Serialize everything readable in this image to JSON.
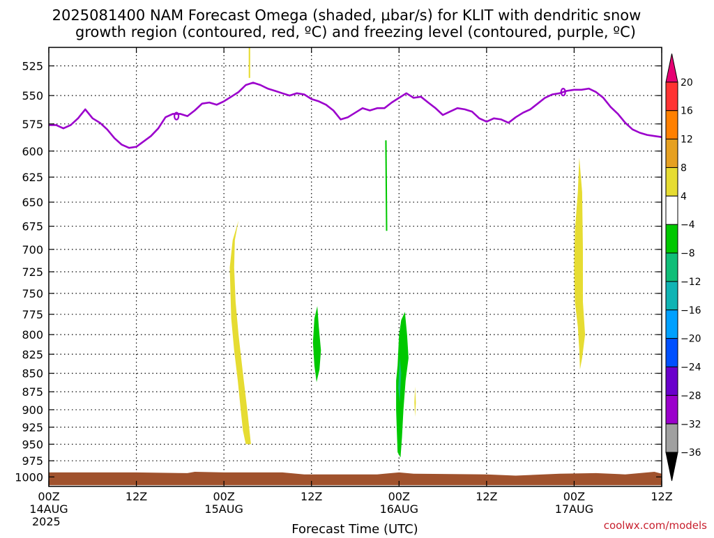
{
  "header": {
    "title_line1": "2025081400 NAM Forecast Omega (shaded, μbar/s) for KLIT with dendritic snow",
    "title_line2": "growth region (contoured, red, ºC) and freezing level (contoured, purple, ºC)"
  },
  "footer": {
    "credit": "coolwx.com/models"
  },
  "chart_data": {
    "type": "heatmap",
    "title": "2025081400 NAM Forecast Omega (shaded, μbar/s) for KLIT with dendritic snow growth region (contoured, red, ºC) and freezing level (contoured, purple, ºC)",
    "xlabel": "Forecast Time (UTC)",
    "ylabel": "",
    "x_unit": "hours",
    "xlim": [
      0,
      84
    ],
    "x_ticks": [
      {
        "h": 0,
        "line1": "00Z",
        "line2": "14AUG",
        "line3": "2025"
      },
      {
        "h": 12,
        "line1": "12Z",
        "line2": "",
        "line3": ""
      },
      {
        "h": 24,
        "line1": "00Z",
        "line2": "15AUG",
        "line3": ""
      },
      {
        "h": 36,
        "line1": "12Z",
        "line2": "",
        "line3": ""
      },
      {
        "h": 48,
        "line1": "00Z",
        "line2": "16AUG",
        "line3": ""
      },
      {
        "h": 60,
        "line1": "12Z",
        "line2": "",
        "line3": ""
      },
      {
        "h": 72,
        "line1": "00Z",
        "line2": "17AUG",
        "line3": ""
      },
      {
        "h": 84,
        "line1": "12Z",
        "line2": "",
        "line3": ""
      }
    ],
    "ylim": [
      1015,
      510
    ],
    "y_scale": "log-pressure",
    "y_ticks": [
      525,
      550,
      575,
      600,
      625,
      650,
      675,
      700,
      725,
      750,
      775,
      800,
      825,
      850,
      875,
      900,
      925,
      950,
      975,
      1000
    ],
    "grid": true,
    "freezing_level": {
      "color": "#9b00cc",
      "points": [
        [
          0,
          576
        ],
        [
          1,
          576
        ],
        [
          2,
          579
        ],
        [
          3,
          576
        ],
        [
          4,
          570
        ],
        [
          5,
          562
        ],
        [
          6,
          570
        ],
        [
          7,
          574
        ],
        [
          8,
          580
        ],
        [
          9,
          588
        ],
        [
          10,
          594
        ],
        [
          11,
          597
        ],
        [
          12,
          596
        ],
        [
          13,
          591
        ],
        [
          14,
          586
        ],
        [
          15,
          579
        ],
        [
          16,
          569
        ],
        [
          17,
          566
        ],
        [
          18,
          566
        ],
        [
          19,
          568
        ],
        [
          20,
          563
        ],
        [
          21,
          557
        ],
        [
          22,
          556
        ],
        [
          23,
          558
        ],
        [
          24,
          555
        ],
        [
          25,
          551
        ],
        [
          26,
          547
        ],
        [
          27,
          541
        ],
        [
          28,
          539
        ],
        [
          29,
          541
        ],
        [
          30,
          544
        ],
        [
          31,
          546
        ],
        [
          32,
          548
        ],
        [
          33,
          550
        ],
        [
          34,
          548
        ],
        [
          35,
          549
        ],
        [
          36,
          553
        ],
        [
          37,
          555
        ],
        [
          38,
          558
        ],
        [
          39,
          563
        ],
        [
          40,
          571
        ],
        [
          41,
          569
        ],
        [
          42,
          565
        ],
        [
          43,
          561
        ],
        [
          44,
          563
        ],
        [
          45,
          561
        ],
        [
          46,
          561
        ],
        [
          47,
          556
        ],
        [
          48,
          552
        ],
        [
          49,
          548
        ],
        [
          50,
          552
        ],
        [
          51,
          551
        ],
        [
          52,
          556
        ],
        [
          53,
          561
        ],
        [
          54,
          567
        ],
        [
          55,
          564
        ],
        [
          56,
          561
        ],
        [
          57,
          562
        ],
        [
          58,
          564
        ],
        [
          59,
          570
        ],
        [
          60,
          573
        ],
        [
          61,
          570
        ],
        [
          62,
          571
        ],
        [
          63,
          574
        ],
        [
          64,
          569
        ],
        [
          65,
          565
        ],
        [
          66,
          562
        ],
        [
          67,
          557
        ],
        [
          68,
          552
        ],
        [
          69,
          549
        ],
        [
          70,
          548
        ],
        [
          71,
          546
        ],
        [
          72,
          545
        ],
        [
          73,
          545
        ],
        [
          74,
          544
        ],
        [
          75,
          547
        ],
        [
          76,
          552
        ],
        [
          77,
          560
        ],
        [
          78,
          566
        ],
        [
          79,
          574
        ],
        [
          80,
          580
        ],
        [
          81,
          583
        ],
        [
          82,
          585
        ],
        [
          83,
          586
        ],
        [
          84,
          587
        ]
      ]
    },
    "terrain": {
      "color": "#a0522d",
      "top_points": [
        [
          0,
          993
        ],
        [
          12,
          993
        ],
        [
          19,
          994
        ],
        [
          20,
          992
        ],
        [
          24,
          993
        ],
        [
          32,
          993
        ],
        [
          35,
          996
        ],
        [
          45,
          996
        ],
        [
          46,
          995
        ],
        [
          48,
          993
        ],
        [
          50,
          995
        ],
        [
          60,
          996
        ],
        [
          62,
          997
        ],
        [
          64,
          998
        ],
        [
          70,
          995
        ],
        [
          75,
          994
        ],
        [
          79,
          996
        ],
        [
          83,
          992
        ],
        [
          84,
          995
        ]
      ],
      "bottom_hpa": 1013
    },
    "omega_colorbar": {
      "levels": [
        20,
        16,
        12,
        8,
        4,
        -4,
        -8,
        -12,
        -16,
        -20,
        -24,
        -28,
        -32,
        -36
      ],
      "colors": [
        "#e60073",
        "#ff3333",
        "#ff8000",
        "#e6a020",
        "#e6dc32",
        "#ffffff",
        "#00c800",
        "#10be78",
        "#10b4b4",
        "#00a0ff",
        "#0050ff",
        "#6a00cc",
        "#9b00cc",
        "#a0a0a0",
        "#000000"
      ]
    },
    "omega_regions": [
      {
        "value_range": [
          4,
          8
        ],
        "color": "#e6dc32",
        "points": [
          [
            26.0,
            669
          ],
          [
            25.5,
            690
          ],
          [
            25.4,
            720
          ],
          [
            25.6,
            760
          ],
          [
            26.0,
            800
          ],
          [
            26.6,
            850
          ],
          [
            27.2,
            900
          ],
          [
            27.7,
            950
          ],
          [
            27.0,
            950
          ],
          [
            26.6,
            930
          ],
          [
            26.3,
            900
          ],
          [
            25.9,
            860
          ],
          [
            25.4,
            820
          ],
          [
            25.0,
            780
          ],
          [
            24.8,
            720
          ],
          [
            25.2,
            690
          ]
        ]
      },
      {
        "value_range": [
          4,
          8
        ],
        "color": "#e6dc32",
        "points": [
          [
            27.4,
            510
          ],
          [
            27.6,
            510
          ],
          [
            27.6,
            535
          ],
          [
            27.4,
            535
          ]
        ]
      },
      {
        "value_range": [
          -8,
          -4
        ],
        "color": "#00c800",
        "points": [
          [
            36.8,
            765
          ],
          [
            37.0,
            790
          ],
          [
            37.3,
            820
          ],
          [
            37.1,
            845
          ],
          [
            36.7,
            862
          ],
          [
            36.4,
            840
          ],
          [
            36.2,
            810
          ],
          [
            36.4,
            780
          ]
        ]
      },
      {
        "value_range": [
          -8,
          -4
        ],
        "color": "#00c800",
        "points": [
          [
            46.3,
            590
          ],
          [
            46.4,
            680
          ],
          [
            46.2,
            680
          ],
          [
            46.1,
            590
          ]
        ]
      },
      {
        "value_range": [
          -8,
          -4
        ],
        "color": "#00c800",
        "points": [
          [
            48.8,
            772
          ],
          [
            49.1,
            800
          ],
          [
            49.3,
            830
          ],
          [
            48.9,
            860
          ],
          [
            48.6,
            900
          ],
          [
            48.4,
            940
          ],
          [
            48.2,
            970
          ],
          [
            47.8,
            962
          ],
          [
            47.7,
            930
          ],
          [
            47.6,
            900
          ],
          [
            47.6,
            860
          ],
          [
            47.8,
            840
          ],
          [
            48.0,
            800
          ],
          [
            48.3,
            782
          ]
        ]
      },
      {
        "value_range": [
          -12,
          -8
        ],
        "color": "#10be78",
        "points": [
          [
            48.1,
            830
          ],
          [
            48.3,
            850
          ],
          [
            48.1,
            890
          ],
          [
            47.9,
            870
          ]
        ]
      },
      {
        "value_range": [
          4,
          8
        ],
        "color": "#e6dc32",
        "points": [
          [
            50.2,
            868
          ],
          [
            50.3,
            890
          ],
          [
            50.2,
            910
          ],
          [
            50.1,
            890
          ]
        ]
      },
      {
        "value_range": [
          4,
          8
        ],
        "color": "#e6dc32",
        "points": [
          [
            72.7,
            606
          ],
          [
            73.1,
            640
          ],
          [
            73.2,
            700
          ],
          [
            73.2,
            760
          ],
          [
            73.5,
            800
          ],
          [
            73.1,
            830
          ],
          [
            72.8,
            845
          ],
          [
            72.7,
            820
          ],
          [
            72.5,
            790
          ],
          [
            72.1,
            760
          ],
          [
            72.0,
            720
          ],
          [
            72.1,
            680
          ],
          [
            72.5,
            640
          ]
        ]
      }
    ]
  }
}
